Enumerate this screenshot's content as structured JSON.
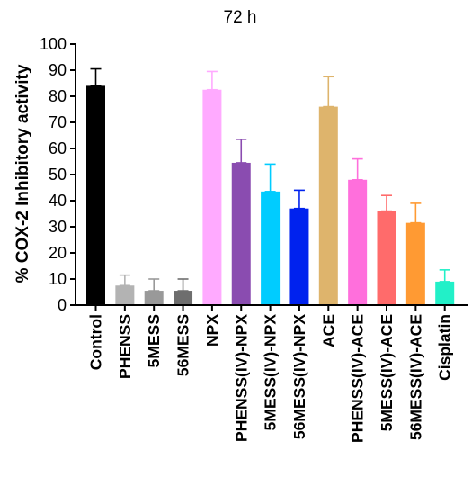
{
  "chart_data": {
    "type": "bar",
    "title": "72 h",
    "xlabel": "",
    "ylabel": "% COX-2 Inhibitory activity",
    "ylim": [
      0,
      100
    ],
    "yticks": [
      0,
      10,
      20,
      30,
      40,
      50,
      60,
      70,
      80,
      90,
      100
    ],
    "grid": false,
    "categories": [
      "Control",
      "PHENSS",
      "5MESS",
      "56MESS",
      "NPX",
      "PHENSS(IV)-NPX",
      "5MESS(IV)-NPX",
      "56MESS(IV)-NPX",
      "ACE",
      "PHENSS(IV)-ACE",
      "5MESS(IV)-ACE",
      "56MESS(IV)-ACE",
      "Cisplatin"
    ],
    "values": [
      84,
      7.5,
      5.5,
      5.5,
      82.5,
      54.5,
      43.5,
      37,
      76,
      48,
      36,
      31.5,
      9
    ],
    "errors": [
      6.5,
      4,
      4.5,
      4.5,
      7,
      9,
      10.5,
      7,
      11.5,
      8,
      6,
      7.5,
      4.5
    ],
    "colors": [
      "#000000",
      "#b3b3b3",
      "#999999",
      "#6e6e6e",
      "#ffaaff",
      "#8a4cb0",
      "#00ccff",
      "#0022ee",
      "#deb46c",
      "#ff6fdc",
      "#ff6b6b",
      "#ff9a33",
      "#22f0c8"
    ]
  }
}
